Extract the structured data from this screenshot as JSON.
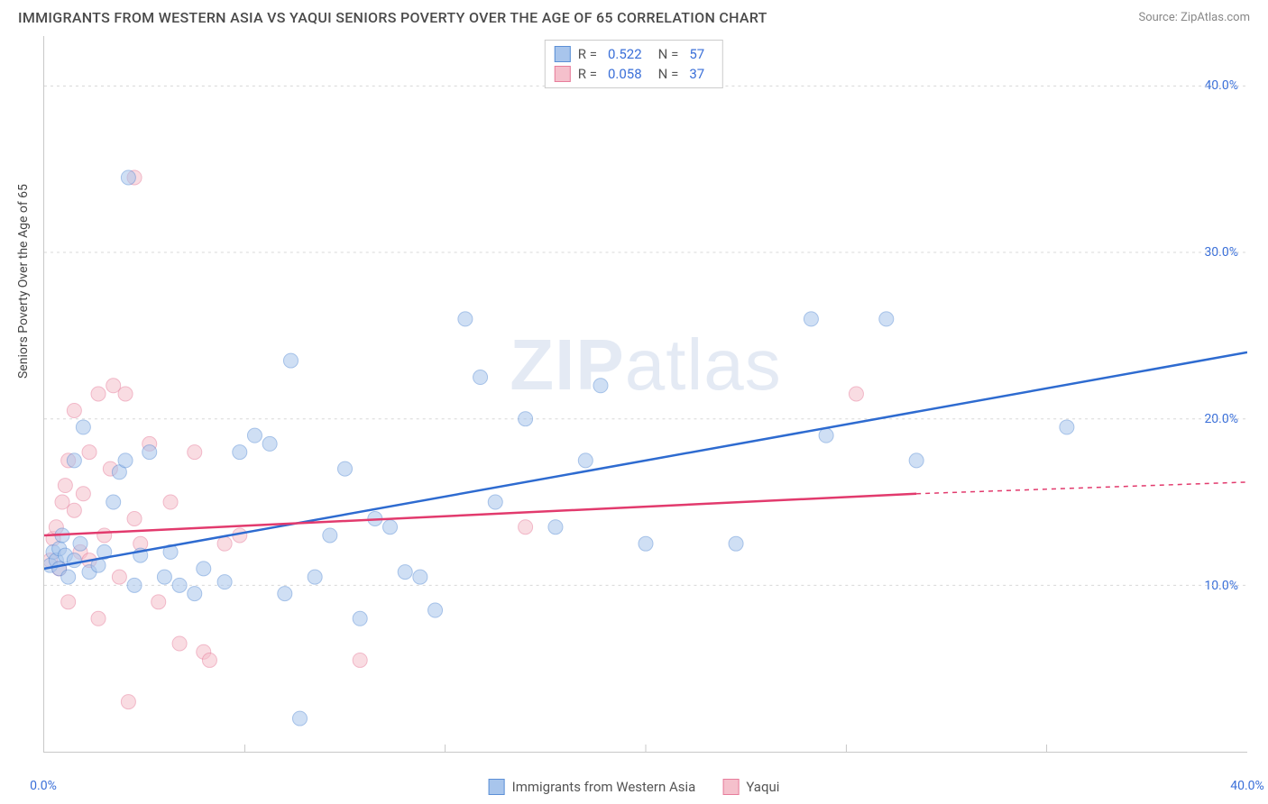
{
  "header": {
    "title": "IMMIGRANTS FROM WESTERN ASIA VS YAQUI SENIORS POVERTY OVER THE AGE OF 65 CORRELATION CHART",
    "source": "Source: ZipAtlas.com"
  },
  "watermark": {
    "part1": "ZIP",
    "part2": "atlas"
  },
  "ylabel": "Seniors Poverty Over the Age of 65",
  "chart": {
    "type": "scatter",
    "xlim": [
      0,
      40
    ],
    "ylim": [
      0,
      43
    ],
    "xticks": [
      0,
      40
    ],
    "xtick_labels": [
      "0.0%",
      "40.0%"
    ],
    "xtick_minor": [
      6.67,
      13.33,
      20,
      26.67,
      33.33
    ],
    "yticks": [
      10,
      20,
      30,
      40
    ],
    "ytick_labels": [
      "10.0%",
      "20.0%",
      "30.0%",
      "40.0%"
    ],
    "xtick_fontsize": 14,
    "ytick_fontsize": 14,
    "tick_color": "#3a6fd8",
    "grid_color": "#d8d8d8",
    "background_color": "#ffffff",
    "border_color": "#c8c8c8",
    "marker_radius": 8,
    "marker_opacity": 0.55,
    "line_width": 2.5
  },
  "series": [
    {
      "name": "Immigrants from Western Asia",
      "color_fill": "#a8c5ec",
      "color_stroke": "#5b8fd6",
      "line_color": "#2e6bd0",
      "r": 0.522,
      "n": 57,
      "trend": {
        "x1": 0,
        "y1": 11,
        "x2": 40,
        "y2": 24
      },
      "points": [
        [
          0.2,
          11.2
        ],
        [
          0.3,
          12.0
        ],
        [
          0.4,
          11.5
        ],
        [
          0.5,
          11.0
        ],
        [
          0.5,
          12.2
        ],
        [
          0.6,
          13.0
        ],
        [
          0.7,
          11.8
        ],
        [
          0.8,
          10.5
        ],
        [
          1.0,
          11.5
        ],
        [
          1.2,
          12.5
        ],
        [
          1.5,
          10.8
        ],
        [
          1.8,
          11.2
        ],
        [
          2.0,
          12.0
        ],
        [
          2.3,
          15.0
        ],
        [
          2.5,
          16.8
        ],
        [
          2.7,
          17.5
        ],
        [
          3.0,
          10.0
        ],
        [
          3.2,
          11.8
        ],
        [
          3.5,
          18.0
        ],
        [
          4.0,
          10.5
        ],
        [
          4.2,
          12.0
        ],
        [
          4.5,
          10.0
        ],
        [
          5.0,
          9.5
        ],
        [
          5.3,
          11.0
        ],
        [
          6.0,
          10.2
        ],
        [
          6.5,
          18.0
        ],
        [
          7.0,
          19.0
        ],
        [
          7.5,
          18.5
        ],
        [
          8.0,
          9.5
        ],
        [
          8.2,
          23.5
        ],
        [
          9.0,
          10.5
        ],
        [
          9.5,
          13.0
        ],
        [
          10.0,
          17.0
        ],
        [
          10.5,
          8.0
        ],
        [
          11.0,
          14.0
        ],
        [
          11.5,
          13.5
        ],
        [
          12.0,
          10.8
        ],
        [
          12.5,
          10.5
        ],
        [
          13.0,
          8.5
        ],
        [
          14.0,
          26.0
        ],
        [
          14.5,
          22.5
        ],
        [
          15.0,
          15.0
        ],
        [
          16.0,
          20.0
        ],
        [
          17.0,
          13.5
        ],
        [
          18.0,
          17.5
        ],
        [
          18.5,
          22.0
        ],
        [
          20.0,
          12.5
        ],
        [
          23.0,
          12.5
        ],
        [
          8.5,
          2.0
        ],
        [
          25.5,
          26.0
        ],
        [
          26.0,
          19.0
        ],
        [
          28.0,
          26.0
        ],
        [
          29.0,
          17.5
        ],
        [
          34.0,
          19.5
        ],
        [
          2.8,
          34.5
        ],
        [
          1.0,
          17.5
        ],
        [
          1.3,
          19.5
        ]
      ]
    },
    {
      "name": "Yaqui",
      "color_fill": "#f5c0cc",
      "color_stroke": "#e77d9b",
      "line_color": "#e23a6d",
      "r": 0.058,
      "n": 37,
      "trend": {
        "x1": 0,
        "y1": 13,
        "x2": 29,
        "y2": 15.5
      },
      "trend_extend": {
        "x1": 29,
        "y1": 15.5,
        "x2": 40,
        "y2": 16.2
      },
      "points": [
        [
          0.2,
          11.5
        ],
        [
          0.3,
          12.8
        ],
        [
          0.4,
          13.5
        ],
        [
          0.5,
          11.0
        ],
        [
          0.6,
          15.0
        ],
        [
          0.7,
          16.0
        ],
        [
          0.8,
          17.5
        ],
        [
          0.8,
          9.0
        ],
        [
          1.0,
          20.5
        ],
        [
          1.0,
          14.5
        ],
        [
          1.2,
          12.0
        ],
        [
          1.3,
          15.5
        ],
        [
          1.5,
          11.5
        ],
        [
          1.5,
          18.0
        ],
        [
          1.8,
          21.5
        ],
        [
          1.8,
          8.0
        ],
        [
          2.0,
          13.0
        ],
        [
          2.2,
          17.0
        ],
        [
          2.3,
          22.0
        ],
        [
          2.5,
          10.5
        ],
        [
          2.7,
          21.5
        ],
        [
          2.8,
          3.0
        ],
        [
          3.0,
          14.0
        ],
        [
          3.2,
          12.5
        ],
        [
          3.5,
          18.5
        ],
        [
          3.8,
          9.0
        ],
        [
          4.2,
          15.0
        ],
        [
          4.5,
          6.5
        ],
        [
          5.0,
          18.0
        ],
        [
          5.3,
          6.0
        ],
        [
          5.5,
          5.5
        ],
        [
          6.0,
          12.5
        ],
        [
          6.5,
          13.0
        ],
        [
          10.5,
          5.5
        ],
        [
          16.0,
          13.5
        ],
        [
          27.0,
          21.5
        ],
        [
          3.0,
          34.5
        ]
      ]
    }
  ],
  "legend_top": {
    "r_label": "R  =",
    "n_label": "N  ="
  },
  "legend_bottom": {
    "items": [
      "Immigrants from Western Asia",
      "Yaqui"
    ]
  }
}
